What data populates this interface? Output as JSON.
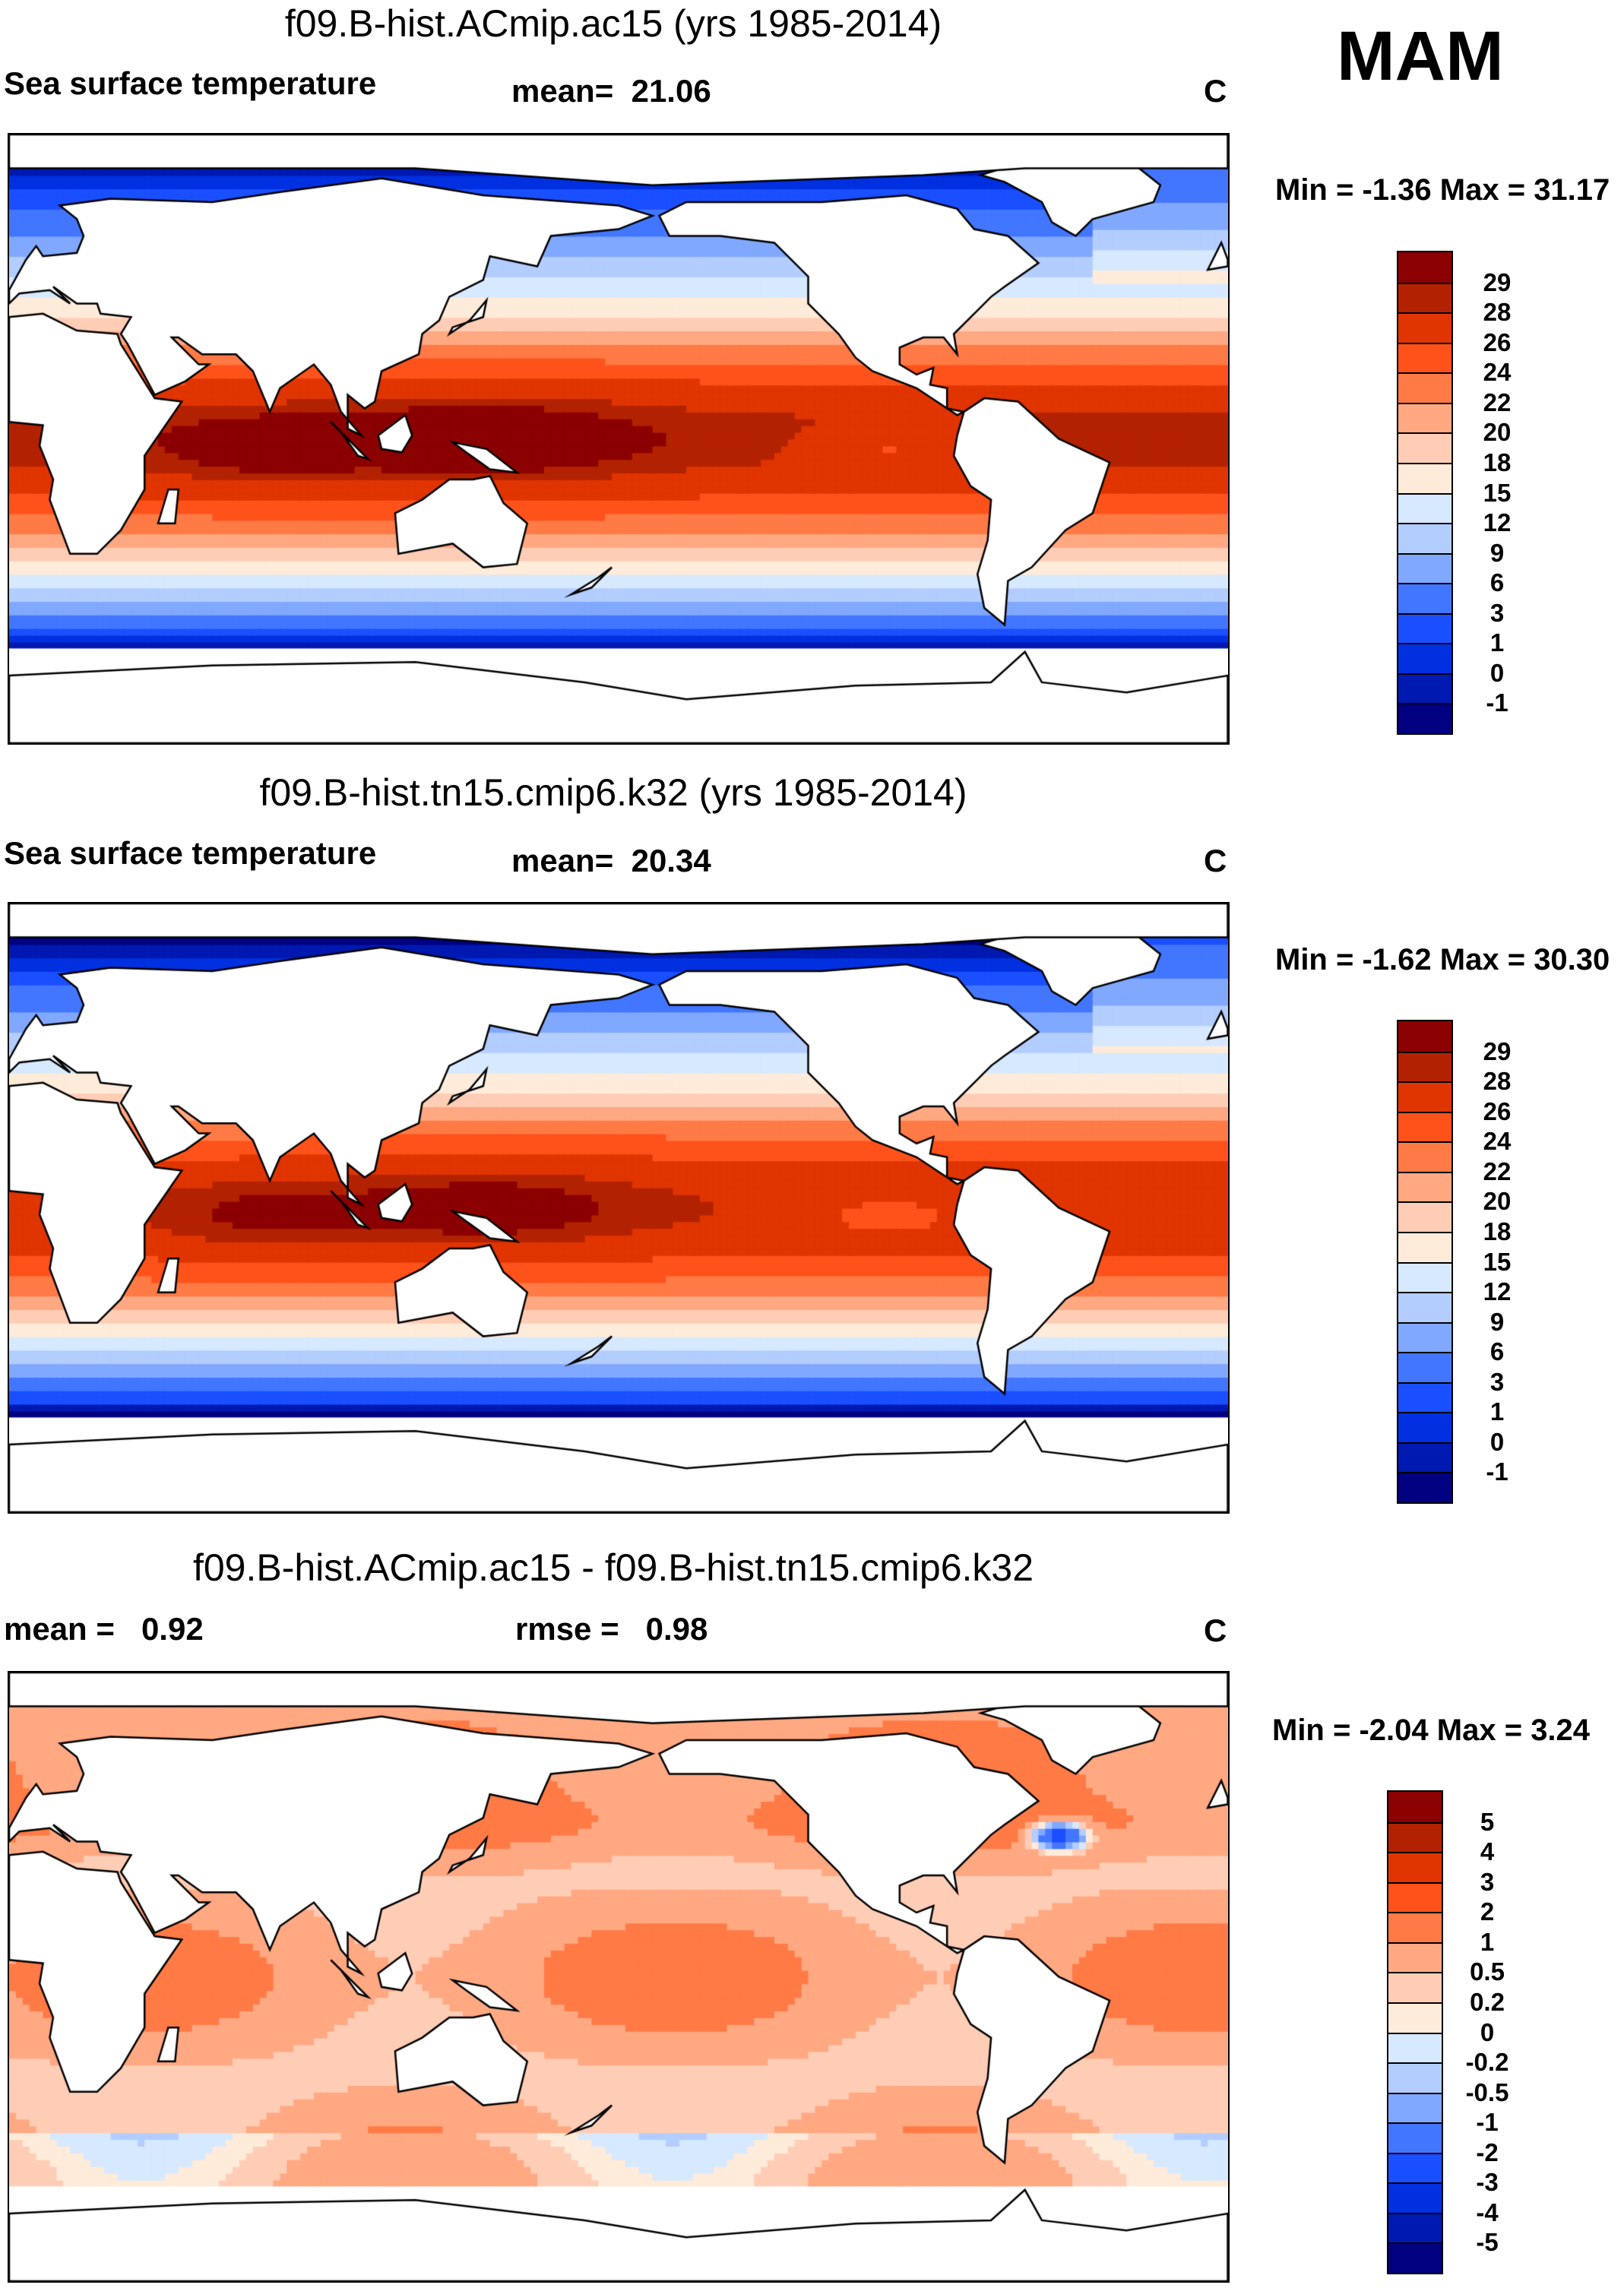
{
  "season": "MAM",
  "panels": [
    {
      "title": "f09.B-hist.ACmip.ac15 (yrs 1985-2014)",
      "variable": "Sea surface temperature",
      "stat1_label": "mean=",
      "stat1_value": "21.06",
      "units": "C",
      "min_label": "Min =",
      "min_value": "-1.36",
      "max_label": "Max =",
      "max_value": "31.17"
    },
    {
      "title": "f09.B-hist.tn15.cmip6.k32 (yrs 1985-2014)",
      "variable": "Sea surface temperature",
      "stat1_label": "mean=",
      "stat1_value": "20.34",
      "units": "C",
      "min_label": "Min =",
      "min_value": "-1.62",
      "max_label": "Max =",
      "max_value": "30.30"
    },
    {
      "title": "f09.B-hist.ACmip.ac15 - f09.B-hist.tn15.cmip6.k32",
      "stat1_label": "mean =",
      "stat1_value": "0.92",
      "stat2_label": "rmse =",
      "stat2_value": "0.98",
      "units": "C",
      "min_label": "Min =",
      "min_value": "-2.04",
      "max_label": "Max =",
      "max_value": "3.24"
    }
  ],
  "chart_data": [
    {
      "type": "heatmap",
      "title": "f09.B-hist.ACmip.ac15 (yrs 1985-2014)",
      "variable": "Sea surface temperature",
      "units": "C",
      "mean": 21.06,
      "min": -1.36,
      "max": 31.17,
      "season": "MAM",
      "lon_range": [
        0,
        360
      ],
      "lat_range": [
        -90,
        90
      ],
      "offset": 0,
      "levels": [
        "-1",
        "0",
        "1",
        "3",
        "6",
        "9",
        "12",
        "15",
        "18",
        "20",
        "22",
        "24",
        "26",
        "28",
        "29"
      ]
    },
    {
      "type": "heatmap",
      "title": "f09.B-hist.tn15.cmip6.k32 (yrs 1985-2014)",
      "variable": "Sea surface temperature",
      "units": "C",
      "mean": 20.34,
      "min": -1.62,
      "max": 30.3,
      "season": "MAM",
      "lon_range": [
        0,
        360
      ],
      "lat_range": [
        -90,
        90
      ],
      "offset": -0.7,
      "levels": [
        "-1",
        "0",
        "1",
        "3",
        "6",
        "9",
        "12",
        "15",
        "18",
        "20",
        "22",
        "24",
        "26",
        "28",
        "29"
      ]
    },
    {
      "type": "heatmap",
      "title": "f09.B-hist.ACmip.ac15 - f09.B-hist.tn15.cmip6.k32",
      "units": "C",
      "mean": 0.92,
      "rmse": 0.98,
      "min": -2.04,
      "max": 3.24,
      "season": "MAM",
      "lon_range": [
        0,
        360
      ],
      "lat_range": [
        -90,
        90
      ],
      "levels": [
        "-5",
        "-4",
        "-3",
        "-2",
        "-1",
        "-0.5",
        "-0.2",
        "0",
        "0.2",
        "0.5",
        "1",
        "2",
        "3",
        "4",
        "5"
      ]
    }
  ],
  "colors": [
    "#000080",
    "#0019b0",
    "#0030e0",
    "#1a4fff",
    "#4276ff",
    "#80a8ff",
    "#b3cdff",
    "#d6e9ff",
    "#ffebd9",
    "#ffcdb5",
    "#ffa882",
    "#ff7a45",
    "#ff521a",
    "#e03500",
    "#b32200",
    "#8b0000"
  ]
}
